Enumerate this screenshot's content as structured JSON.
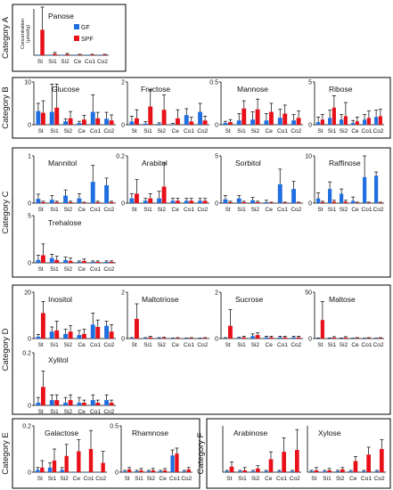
{
  "chart_data": {
    "type": "bar",
    "ylabel": "Concentration\n(µmol/g)",
    "categories": [
      "St",
      "Si1",
      "Si2",
      "Ce",
      "Co1",
      "Co2"
    ],
    "legend": {
      "placement": "inside-top",
      "entries": [
        {
          "name": "GF",
          "color": "#1f6fe0"
        },
        {
          "name": "SPF",
          "color": "#e8111a"
        }
      ]
    },
    "colors": {
      "GF": "#1f6fe0",
      "SPF": "#e8111a"
    },
    "groups": [
      {
        "label": "Category A",
        "charts": [
          {
            "title": "Panose",
            "ylim": [
              0,
              1
            ],
            "yticks": [],
            "GF": [
              0.0,
              0.0,
              0.0,
              0.0,
              0.0,
              0.0
            ],
            "SPF": [
              0.55,
              0.03,
              0.02,
              0.01,
              0.01,
              0.01
            ],
            "GF_err": [
              0.0,
              0.0,
              0.0,
              0.0,
              0.0,
              0.0
            ],
            "SPF_err": [
              0.5,
              0.03,
              0.02,
              0.01,
              0.01,
              0.01
            ]
          }
        ]
      },
      {
        "label": "Category B",
        "charts": [
          {
            "title": "Glucose",
            "ylim": [
              0,
              10
            ],
            "yticks": [
              0,
              10
            ],
            "GF": [
              3.2,
              3.0,
              0.8,
              0.4,
              3.0,
              1.4
            ],
            "SPF": [
              2.8,
              4.0,
              1.5,
              1.2,
              1.5,
              1.0
            ],
            "GF_err": [
              1.8,
              6.5,
              0.6,
              0.4,
              4.0,
              1.5
            ],
            "SPF_err": [
              2.8,
              5.5,
              1.6,
              1.0,
              1.4,
              1.3
            ]
          },
          {
            "title": "Fructose",
            "ylim": [
              0,
              2
            ],
            "yticks": [
              0,
              2
            ],
            "GF": [
              0.15,
              0.05,
              0.04,
              0.02,
              0.45,
              0.6
            ],
            "SPF": [
              0.3,
              0.85,
              0.7,
              0.3,
              0.15,
              0.2
            ],
            "GF_err": [
              0.25,
              0.1,
              0.05,
              0.04,
              0.3,
              0.4
            ],
            "SPF_err": [
              0.4,
              0.8,
              0.7,
              0.4,
              0.2,
              0.2
            ]
          },
          {
            "title": "Mannose",
            "ylim": [
              0,
              0.5
            ],
            "yticks": [
              0,
              0.5
            ],
            "GF": [
              0.02,
              0.05,
              0.06,
              0.05,
              0.08,
              0.05
            ],
            "SPF": [
              0.03,
              0.19,
              0.18,
              0.15,
              0.13,
              0.08
            ],
            "GF_err": [
              0.02,
              0.08,
              0.09,
              0.08,
              0.1,
              0.07
            ],
            "SPF_err": [
              0.03,
              0.09,
              0.12,
              0.1,
              0.1,
              0.08
            ]
          },
          {
            "title": "Ribose",
            "ylim": [
              0,
              5
            ],
            "yticks": [
              0,
              5
            ],
            "GF": [
              0.3,
              0.8,
              0.6,
              0.2,
              0.6,
              0.9
            ],
            "SPF": [
              0.6,
              2.0,
              1.0,
              0.4,
              0.8,
              1.0
            ],
            "GF_err": [
              0.6,
              0.9,
              0.6,
              0.3,
              0.6,
              0.8
            ],
            "SPF_err": [
              0.6,
              1.4,
              1.6,
              0.5,
              0.8,
              0.8
            ]
          }
        ]
      },
      {
        "label": "Category C",
        "charts": [
          {
            "title": "Mannitol",
            "ylim": [
              0,
              1
            ],
            "yticks": [
              0,
              1
            ],
            "GF": [
              0.09,
              0.07,
              0.16,
              0.1,
              0.45,
              0.38
            ],
            "SPF": [
              0.02,
              0.02,
              0.02,
              0.01,
              0.02,
              0.02
            ],
            "GF_err": [
              0.1,
              0.09,
              0.12,
              0.1,
              0.35,
              0.15
            ],
            "SPF_err": [
              0.02,
              0.02,
              0.02,
              0.01,
              0.02,
              0.02
            ]
          },
          {
            "title": "Arabitol",
            "ylim": [
              0,
              0.2
            ],
            "yticks": [
              0,
              0.2
            ],
            "GF": [
              0.02,
              0.01,
              0.02,
              0.01,
              0.01,
              0.01
            ],
            "SPF": [
              0.04,
              0.02,
              0.07,
              0.01,
              0.01,
              0.01
            ],
            "GF_err": [
              0.02,
              0.01,
              0.03,
              0.01,
              0.01,
              0.01
            ],
            "SPF_err": [
              0.06,
              0.02,
              0.1,
              0.01,
              0.01,
              0.01
            ]
          },
          {
            "title": "Sorbitol",
            "ylim": [
              0,
              5
            ],
            "yticks": [
              0,
              5
            ],
            "GF": [
              0.4,
              0.5,
              0.3,
              0.1,
              2.0,
              1.5
            ],
            "SPF": [
              0.1,
              0.1,
              0.1,
              0.05,
              0.05,
              0.05
            ],
            "GF_err": [
              0.4,
              0.3,
              0.3,
              0.2,
              1.6,
              0.8
            ],
            "SPF_err": [
              0.1,
              0.1,
              0.1,
              0.05,
              0.05,
              0.05
            ]
          },
          {
            "title": "Raffinose",
            "ylim": [
              0,
              10
            ],
            "yticks": [
              0,
              10
            ],
            "GF": [
              1.0,
              3.0,
              2.0,
              0.5,
              5.5,
              5.8
            ],
            "SPF": [
              0.2,
              0.3,
              0.3,
              0.1,
              0.1,
              0.1
            ],
            "GF_err": [
              1.2,
              1.5,
              1.0,
              0.8,
              4.5,
              0.8
            ],
            "SPF_err": [
              0.2,
              0.3,
              0.3,
              0.1,
              0.1,
              0.1
            ]
          },
          {
            "title": "Trehalose",
            "ylim": [
              0,
              5
            ],
            "yticks": [
              0,
              5
            ],
            "GF": [
              0.3,
              0.5,
              0.3,
              0.1,
              0.1,
              0.1
            ],
            "SPF": [
              0.8,
              0.3,
              0.2,
              0.2,
              0.1,
              0.1
            ],
            "GF_err": [
              0.5,
              0.4,
              0.3,
              0.1,
              0.1,
              0.1
            ],
            "SPF_err": [
              1.2,
              0.4,
              0.3,
              0.2,
              0.1,
              0.1
            ]
          }
        ]
      },
      {
        "label": "Category D",
        "charts": [
          {
            "title": "Inositol",
            "ylim": [
              0,
              20
            ],
            "yticks": [
              0,
              20
            ],
            "GF": [
              0.8,
              3.0,
              2.0,
              1.5,
              6.0,
              5.5
            ],
            "SPF": [
              11.0,
              3.5,
              3.0,
              2.0,
              5.0,
              3.0
            ],
            "GF_err": [
              1.0,
              2.0,
              2.0,
              2.0,
              5.0,
              2.0
            ],
            "SPF_err": [
              5.0,
              4.0,
              2.5,
              2.0,
              3.0,
              3.0
            ]
          },
          {
            "title": "Maltotriose",
            "ylim": [
              0,
              2
            ],
            "yticks": [
              0,
              2
            ],
            "GF": [
              0.02,
              0.02,
              0.02,
              0.01,
              0.01,
              0.01
            ],
            "SPF": [
              0.85,
              0.05,
              0.03,
              0.02,
              0.02,
              0.02
            ],
            "GF_err": [
              0.02,
              0.02,
              0.02,
              0.01,
              0.01,
              0.01
            ],
            "SPF_err": [
              0.65,
              0.05,
              0.03,
              0.02,
              0.02,
              0.02
            ]
          },
          {
            "title": "Sucrose",
            "ylim": [
              0,
              2
            ],
            "yticks": [
              0,
              2
            ],
            "GF": [
              0.02,
              0.03,
              0.1,
              0.05,
              0.05,
              0.05
            ],
            "SPF": [
              0.55,
              0.05,
              0.15,
              0.05,
              0.05,
              0.05
            ],
            "GF_err": [
              0.02,
              0.03,
              0.1,
              0.05,
              0.05,
              0.05
            ],
            "SPF_err": [
              0.7,
              0.05,
              0.1,
              0.05,
              0.05,
              0.05
            ]
          },
          {
            "title": "Maltose",
            "ylim": [
              0,
              50
            ],
            "yticks": [
              0,
              50
            ],
            "GF": [
              0.3,
              0.3,
              0.3,
              0.2,
              0.2,
              0.2
            ],
            "SPF": [
              20.0,
              1.0,
              1.0,
              0.5,
              0.5,
              0.5
            ],
            "GF_err": [
              0.3,
              0.3,
              0.3,
              0.2,
              0.2,
              0.2
            ],
            "SPF_err": [
              20.0,
              1.0,
              1.0,
              0.5,
              0.5,
              0.5
            ]
          },
          {
            "title": "Xylitol",
            "ylim": [
              0,
              0.2
            ],
            "yticks": [
              0,
              0.2
            ],
            "GF": [
              0.01,
              0.02,
              0.01,
              0.01,
              0.02,
              0.02
            ],
            "SPF": [
              0.07,
              0.02,
              0.02,
              0.01,
              0.01,
              0.01
            ],
            "GF_err": [
              0.02,
              0.02,
              0.02,
              0.02,
              0.02,
              0.02
            ],
            "SPF_err": [
              0.06,
              0.02,
              0.02,
              0.01,
              0.01,
              0.01
            ]
          }
        ]
      },
      {
        "label": "Category E",
        "charts": [
          {
            "title": "Galactose",
            "ylim": [
              0,
              0.2
            ],
            "yticks": [
              0,
              0.2
            ],
            "GF": [
              0.01,
              0.02,
              0.01,
              0.0,
              0.0,
              0.0
            ],
            "SPF": [
              0.02,
              0.05,
              0.07,
              0.09,
              0.1,
              0.04
            ],
            "GF_err": [
              0.01,
              0.02,
              0.01,
              0.0,
              0.0,
              0.0
            ],
            "SPF_err": [
              0.03,
              0.05,
              0.05,
              0.05,
              0.08,
              0.05
            ]
          },
          {
            "title": "Rhamnose",
            "ylim": [
              0,
              0.5
            ],
            "yticks": [
              0,
              0.5
            ],
            "GF": [
              0.01,
              0.01,
              0.01,
              0.01,
              0.18,
              0.01
            ],
            "SPF": [
              0.03,
              0.02,
              0.02,
              0.02,
              0.2,
              0.03
            ],
            "GF_err": [
              0.01,
              0.01,
              0.01,
              0.01,
              0.06,
              0.01
            ],
            "SPF_err": [
              0.02,
              0.02,
              0.02,
              0.02,
              0.06,
              0.02
            ]
          }
        ]
      },
      {
        "label": "Category F",
        "charts": [
          {
            "title": "Arabinose",
            "ylim": [
              0,
              0.5
            ],
            "yticks": [],
            "GF": [
              0.01,
              0.01,
              0.01,
              0.01,
              0.01,
              0.01
            ],
            "SPF": [
              0.06,
              0.02,
              0.04,
              0.14,
              0.22,
              0.24
            ],
            "GF_err": [
              0.01,
              0.01,
              0.01,
              0.01,
              0.01,
              0.01
            ],
            "SPF_err": [
              0.05,
              0.03,
              0.03,
              0.08,
              0.15,
              0.22
            ]
          },
          {
            "title": "Xylose",
            "ylim": [
              0,
              0.5
            ],
            "yticks": [],
            "GF": [
              0.01,
              0.01,
              0.01,
              0.01,
              0.01,
              0.01
            ],
            "SPF": [
              0.02,
              0.02,
              0.03,
              0.12,
              0.19,
              0.25
            ],
            "GF_err": [
              0.01,
              0.01,
              0.01,
              0.01,
              0.01,
              0.01
            ],
            "SPF_err": [
              0.03,
              0.02,
              0.02,
              0.05,
              0.08,
              0.1
            ]
          }
        ]
      }
    ]
  }
}
